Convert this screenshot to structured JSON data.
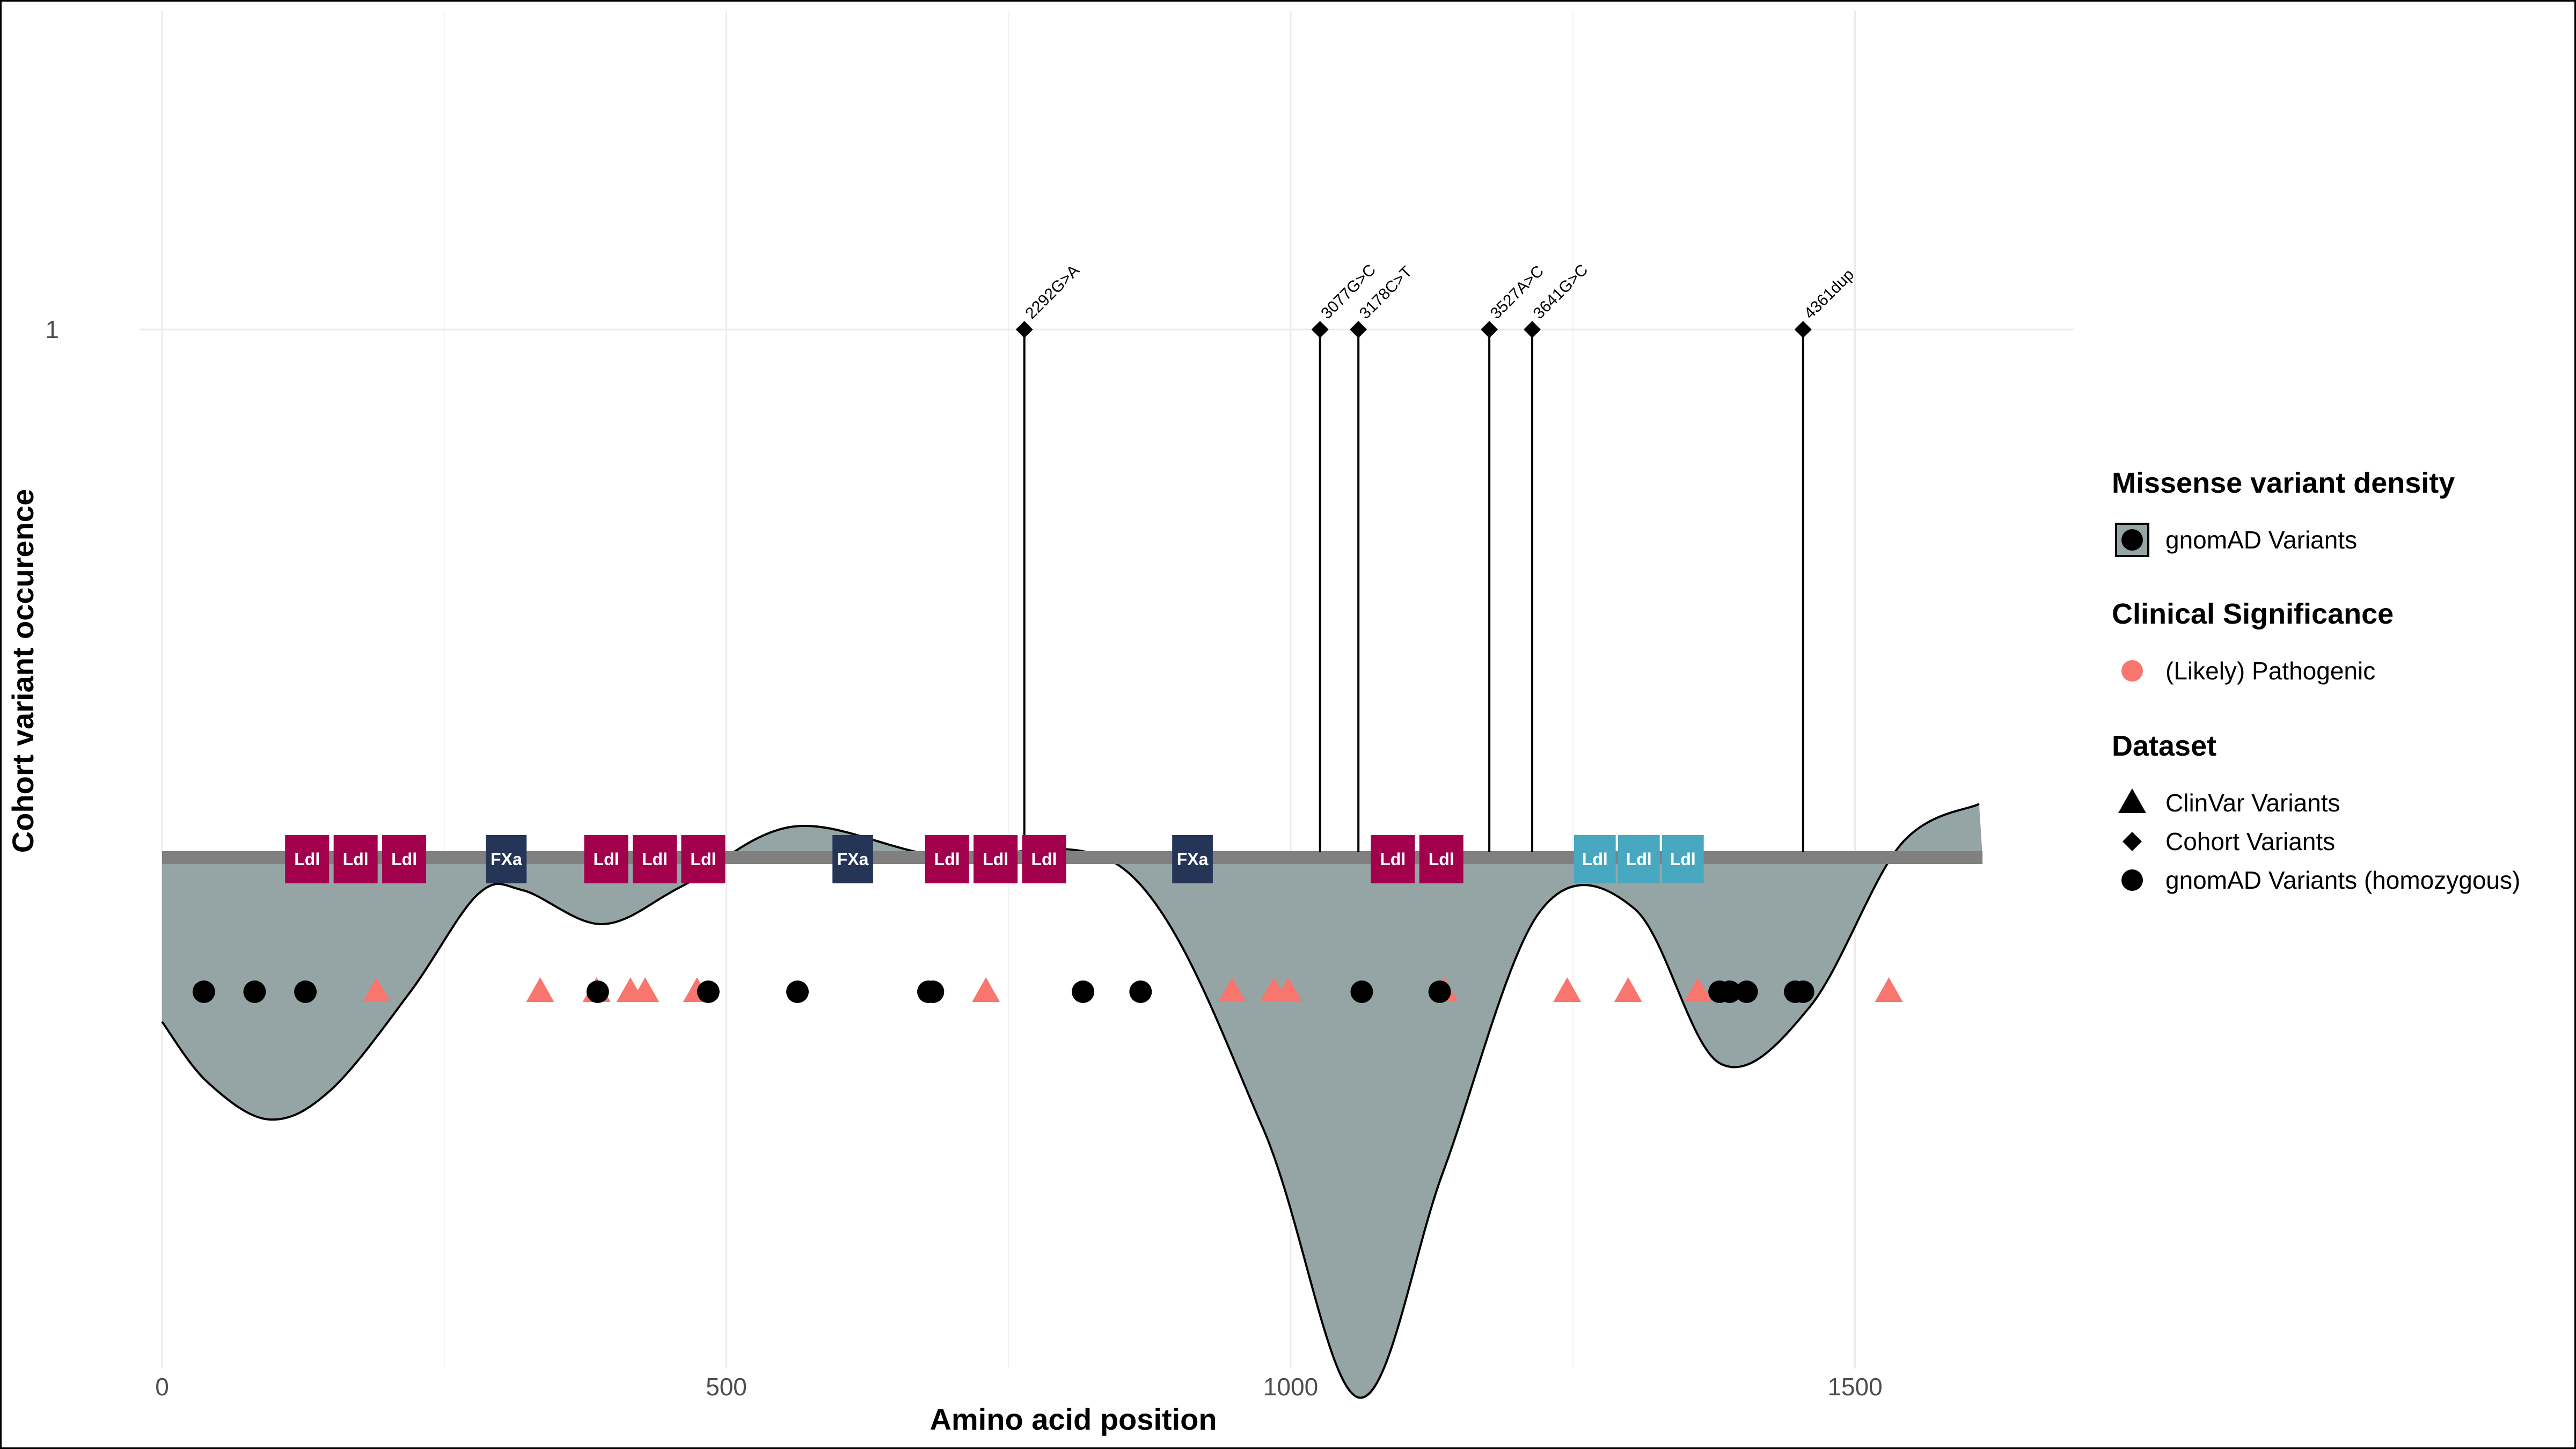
{
  "chart_data": {
    "type": "lollipop",
    "xlabel": "Amino acid position",
    "ylabel": "Cohort variant occurence",
    "xlim": [
      0,
      1700
    ],
    "x_ticks": [
      0,
      500,
      1000,
      1500
    ],
    "y_ticks": [
      1
    ],
    "grid": true,
    "protein_length": 1613,
    "domains": [
      {
        "name": "Ldl",
        "start": 109,
        "end": 148,
        "color": "#A2004D"
      },
      {
        "name": "Ldl",
        "start": 152,
        "end": 191,
        "color": "#A2004D"
      },
      {
        "name": "Ldl",
        "start": 195,
        "end": 234,
        "color": "#A2004D"
      },
      {
        "name": "FXa",
        "start": 287,
        "end": 323,
        "color": "#253558"
      },
      {
        "name": "Ldl",
        "start": 374,
        "end": 413,
        "color": "#A2004D"
      },
      {
        "name": "Ldl",
        "start": 417,
        "end": 456,
        "color": "#A2004D"
      },
      {
        "name": "Ldl",
        "start": 460,
        "end": 499,
        "color": "#A2004D"
      },
      {
        "name": "FXa",
        "start": 594,
        "end": 630,
        "color": "#253558"
      },
      {
        "name": "Ldl",
        "start": 676,
        "end": 715,
        "color": "#A2004D"
      },
      {
        "name": "Ldl",
        "start": 719,
        "end": 758,
        "color": "#A2004D"
      },
      {
        "name": "Ldl",
        "start": 762,
        "end": 801,
        "color": "#A2004D"
      },
      {
        "name": "FXa",
        "start": 895,
        "end": 931,
        "color": "#253558"
      },
      {
        "name": "Ldl",
        "start": 1071,
        "end": 1110,
        "color": "#A2004D"
      },
      {
        "name": "Ldl",
        "start": 1114,
        "end": 1153,
        "color": "#A2004D"
      },
      {
        "name": "Ldl",
        "start": 1251,
        "end": 1288,
        "color": "#48A8C0"
      },
      {
        "name": "Ldl",
        "start": 1290,
        "end": 1327,
        "color": "#48A8C0"
      },
      {
        "name": "Ldl",
        "start": 1329,
        "end": 1366,
        "color": "#48A8C0"
      }
    ],
    "cohort_variants": [
      {
        "label": "2292G>A",
        "position": 764,
        "occurrence": 1
      },
      {
        "label": "3077G>C",
        "position": 1026,
        "occurrence": 1
      },
      {
        "label": "3178C>T",
        "position": 1060,
        "occurrence": 1
      },
      {
        "label": "3527A>C",
        "position": 1176,
        "occurrence": 1
      },
      {
        "label": "3641G>C",
        "position": 1214,
        "occurrence": 1
      },
      {
        "label": "4361dup",
        "position": 1454,
        "occurrence": 1
      }
    ],
    "clinvar_variants": [
      190,
      335,
      385,
      415,
      428,
      474,
      730,
      948,
      985,
      998,
      1136,
      1245,
      1299,
      1361,
      1530
    ],
    "gnomad_homozygous": [
      37,
      82,
      127,
      386,
      484,
      563,
      679,
      683,
      816,
      867,
      1063,
      1132,
      1380,
      1389,
      1404,
      1447,
      1454
    ],
    "density_curve": [
      {
        "x": 0,
        "y": 0.42
      },
      {
        "x": 40,
        "y": 0.58
      },
      {
        "x": 95,
        "y": 0.68
      },
      {
        "x": 150,
        "y": 0.6
      },
      {
        "x": 220,
        "y": 0.34
      },
      {
        "x": 280,
        "y": 0.08
      },
      {
        "x": 320,
        "y": 0.07
      },
      {
        "x": 390,
        "y": 0.16
      },
      {
        "x": 460,
        "y": 0.06
      },
      {
        "x": 560,
        "y": -0.1
      },
      {
        "x": 690,
        "y": -0.02
      },
      {
        "x": 855,
        "y": 0.02
      },
      {
        "x": 975,
        "y": 0.7
      },
      {
        "x": 1060,
        "y": 1.42
      },
      {
        "x": 1135,
        "y": 0.82
      },
      {
        "x": 1220,
        "y": 0.13
      },
      {
        "x": 1305,
        "y": 0.12
      },
      {
        "x": 1380,
        "y": 0.53
      },
      {
        "x": 1460,
        "y": 0.38
      },
      {
        "x": 1540,
        "y": -0.05
      },
      {
        "x": 1610,
        "y": -0.16
      }
    ],
    "colors": {
      "density_fill": "#95A5A6",
      "protein_bar": "#808080",
      "pathogenic": "#F8766D",
      "gnomad_homozygous": "#000000",
      "cohort": "#000000"
    },
    "legend": [
      {
        "title": "Missense variant density",
        "entries": [
          {
            "shape": "filled-box-circle",
            "label": "gnomAD Variants"
          }
        ]
      },
      {
        "title": "Clinical Significance",
        "entries": [
          {
            "shape": "circle",
            "color": "#F8766D",
            "label": "(Likely) Pathogenic"
          }
        ]
      },
      {
        "title": "Dataset",
        "entries": [
          {
            "shape": "triangle",
            "label": "ClinVar Variants"
          },
          {
            "shape": "diamond",
            "label": "Cohort Variants"
          },
          {
            "shape": "circle",
            "label": "gnomAD Variants (homozygous)"
          }
        ]
      }
    ],
    "legend_position": "right"
  }
}
